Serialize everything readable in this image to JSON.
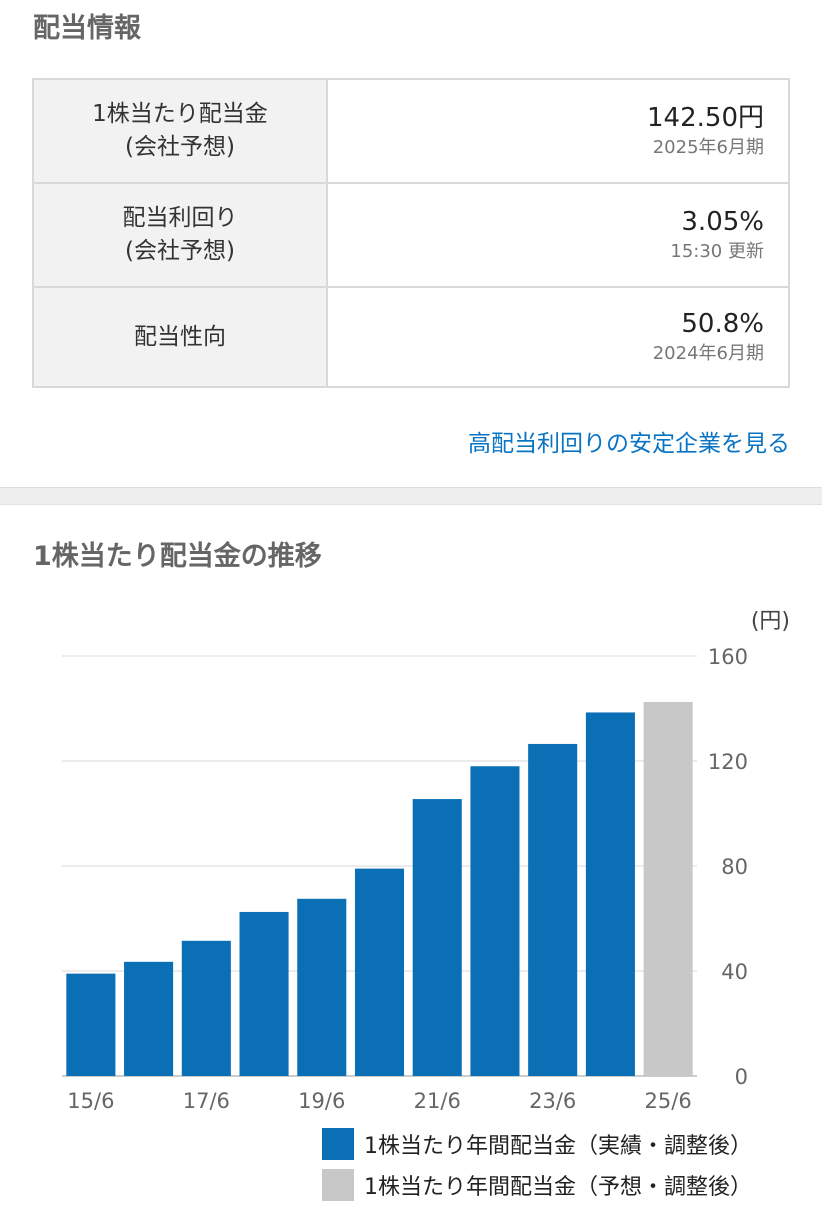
{
  "dividend": {
    "title": "配当情報",
    "rows": [
      {
        "label_line1": "1株当たり配当金",
        "label_line2": "(会社予想)",
        "value": "142.50円",
        "sub": "2025年6月期"
      },
      {
        "label_line1": "配当利回り",
        "label_line2": "(会社予想)",
        "value": "3.05%",
        "sub": "15:30 更新"
      },
      {
        "label_line1": "配当性向",
        "label_line2": "",
        "value": "50.8%",
        "sub": "2024年6月期"
      }
    ],
    "link_text": "高配当利回りの安定企業を見る"
  },
  "chart_data": {
    "type": "bar",
    "title": "1株当たり配当金の推移",
    "unit_label": "(円)",
    "categories": [
      "15/6",
      "16/6",
      "17/6",
      "18/6",
      "19/6",
      "20/6",
      "21/6",
      "22/6",
      "23/6",
      "24/6",
      "25/6"
    ],
    "x_tick_labels": [
      "15/6",
      "17/6",
      "19/6",
      "21/6",
      "23/6",
      "25/6"
    ],
    "series": [
      {
        "name": "1株当たり年間配当金（実績・調整後）",
        "color": "#0a6fb5",
        "values": [
          39,
          43.5,
          51.5,
          62.5,
          67.5,
          79,
          105.5,
          118,
          126.5,
          138.5,
          null
        ]
      },
      {
        "name": "1株当たり年間配当金（予想・調整後）",
        "color": "#c8c8c8",
        "values": [
          null,
          null,
          null,
          null,
          null,
          null,
          null,
          null,
          null,
          null,
          142.5
        ]
      }
    ],
    "ylim": [
      0,
      160
    ],
    "yticks": [
      0,
      40,
      80,
      120,
      160
    ],
    "grid": true,
    "legend_position": "bottom-right"
  }
}
